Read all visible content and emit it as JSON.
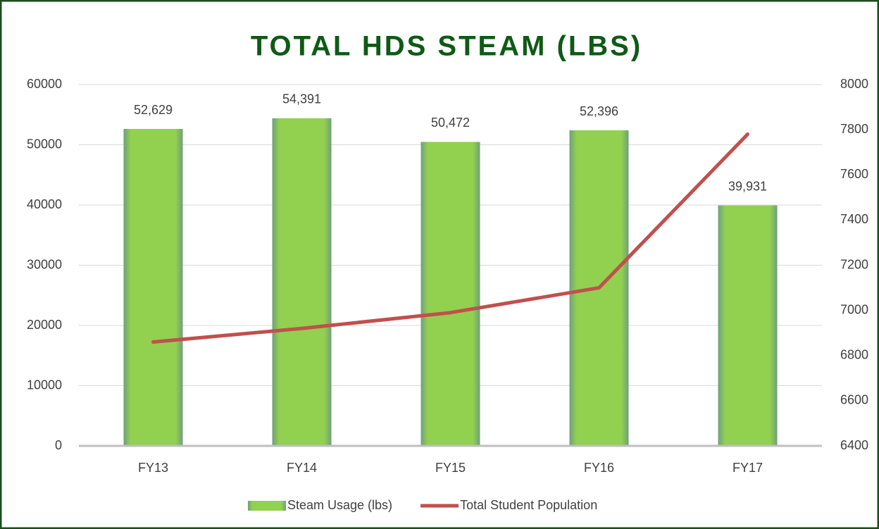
{
  "chart_data": {
    "type": "bar",
    "title": "TOTAL HDS STEAM (LBS)",
    "categories": [
      "FY13",
      "FY14",
      "FY15",
      "FY16",
      "FY17"
    ],
    "series": [
      {
        "name": "Steam Usage (lbs)",
        "type": "bar",
        "color": "#92d050",
        "values": [
          52629,
          54391,
          50472,
          52396,
          39931
        ],
        "value_labels": [
          "52,629",
          "54,391",
          "50,472",
          "52,396",
          "39,931"
        ]
      },
      {
        "name": "Total Student Population",
        "type": "line",
        "color": "#c0504d",
        "axis": "y2",
        "values": [
          6860,
          6920,
          6990,
          7100,
          7780
        ]
      }
    ],
    "ylim": [
      0,
      60000
    ],
    "yticks": [
      0,
      10000,
      20000,
      30000,
      40000,
      50000,
      60000
    ],
    "y2lim": [
      6400,
      8000
    ],
    "y2ticks": [
      6400,
      6600,
      6800,
      7000,
      7200,
      7400,
      7600,
      7800,
      8000
    ],
    "grid": true,
    "legend": "bottom"
  }
}
